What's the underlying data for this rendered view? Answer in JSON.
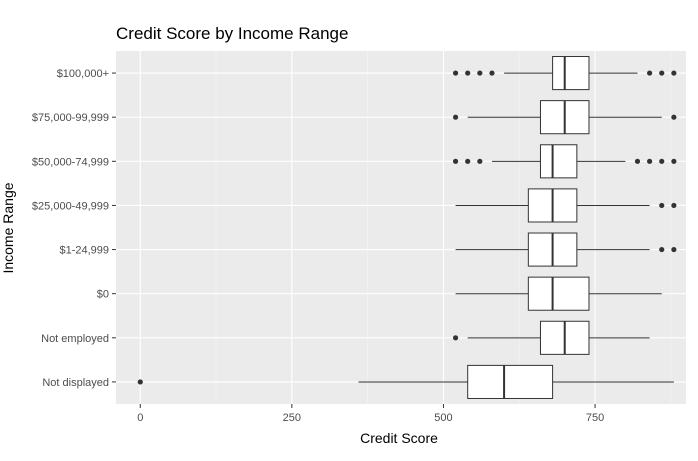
{
  "chart_data": {
    "type": "boxplot",
    "title": "Credit Score by Income Range",
    "xlabel": "Credit Score",
    "ylabel": "Income Range",
    "xlim": [
      -40,
      900
    ],
    "x_ticks": [
      0,
      250,
      500,
      750
    ],
    "grid": true,
    "orientation": "horizontal",
    "categories": [
      "$100,000+",
      "$75,000-99,999",
      "$50,000-74,999",
      "$25,000-49,999",
      "$1-24,999",
      "$0",
      "Not employed",
      "Not displayed"
    ],
    "boxes": [
      {
        "category": "$100,000+",
        "whisker_low": 600,
        "q1": 680,
        "median": 700,
        "q3": 740,
        "whisker_high": 820,
        "outliers": [
          520,
          540,
          560,
          580,
          840,
          860,
          880
        ]
      },
      {
        "category": "$75,000-99,999",
        "whisker_low": 540,
        "q1": 660,
        "median": 700,
        "q3": 740,
        "whisker_high": 860,
        "outliers": [
          520,
          880
        ]
      },
      {
        "category": "$50,000-74,999",
        "whisker_low": 580,
        "q1": 660,
        "median": 680,
        "q3": 720,
        "whisker_high": 800,
        "outliers": [
          520,
          540,
          560,
          820,
          840,
          860,
          880
        ]
      },
      {
        "category": "$25,000-49,999",
        "whisker_low": 520,
        "q1": 640,
        "median": 680,
        "q3": 720,
        "whisker_high": 840,
        "outliers": [
          860,
          880
        ]
      },
      {
        "category": "$1-24,999",
        "whisker_low": 520,
        "q1": 640,
        "median": 680,
        "q3": 720,
        "whisker_high": 840,
        "outliers": [
          860,
          880
        ]
      },
      {
        "category": "$0",
        "whisker_low": 520,
        "q1": 640,
        "median": 680,
        "q3": 740,
        "whisker_high": 860,
        "outliers": []
      },
      {
        "category": "Not employed",
        "whisker_low": 540,
        "q1": 660,
        "median": 700,
        "q3": 740,
        "whisker_high": 840,
        "outliers": [
          520
        ]
      },
      {
        "category": "Not displayed",
        "whisker_low": 360,
        "q1": 540,
        "median": 600,
        "q3": 680,
        "whisker_high": 880,
        "outliers": [
          0
        ]
      }
    ],
    "colors": {
      "panel": "#ebebeb",
      "grid_major": "#ffffff",
      "grid_minor": "#f5f5f5",
      "box_fill": "#ffffff",
      "box_stroke": "#333333",
      "tick_text": "#4d4d4d"
    }
  }
}
